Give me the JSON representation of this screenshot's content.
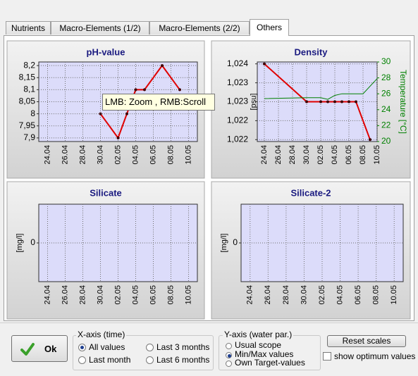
{
  "tabs": [
    "Nutrients",
    "Macro-Elements (1/2)",
    "Macro-Elements (2/2)",
    "Others"
  ],
  "active_tab": 3,
  "chart_data": [
    {
      "type": "line",
      "title": "pH-value",
      "xticks": [
        "24.04",
        "26.04",
        "28.04",
        "30.04",
        "02.05",
        "04.05",
        "06.05",
        "08.05",
        "10.05"
      ],
      "xlim": [
        "23.04",
        "11.05"
      ],
      "ylim": [
        7.885,
        8.215
      ],
      "yticks": [
        {
          "value": 8.2,
          "label": "8,2"
        },
        {
          "value": 8.15,
          "label": "8,15"
        },
        {
          "value": 8.1,
          "label": "8,1"
        },
        {
          "value": 8.05,
          "label": "8,05"
        },
        8,
        {
          "value": 7.95,
          "label": "7,95"
        },
        {
          "value": 7.9,
          "label": "7,9"
        }
      ],
      "grid": true,
      "series": [
        {
          "color": "#e00000",
          "markers": true,
          "x": [
            "30.04",
            "02.05",
            "03.05",
            "04.05",
            "05.05",
            "07.05",
            "09.05"
          ],
          "values": [
            8.0,
            7.9,
            8.0,
            8.1,
            8.1,
            8.2,
            8.1
          ]
        }
      ]
    },
    {
      "type": "line",
      "title": "Density",
      "ylabel": "[psu]",
      "y2label": "Temperature [°C]",
      "xticks": [
        "24.04",
        "26.04",
        "28.04",
        "30.04",
        "02.05",
        "04.05",
        "06.05",
        "08.05",
        "10.05"
      ],
      "xlim": [
        "23.04",
        "10.05"
      ],
      "ylim": [
        1.02195,
        1.02405
      ],
      "yticks": [
        {
          "value": 1.024,
          "label": "1,024"
        },
        {
          "value": 1.0235,
          "label": "1,023"
        },
        {
          "value": 1.023,
          "label": "1,023"
        },
        {
          "value": 1.0225,
          "label": "1,022"
        },
        {
          "value": 1.022,
          "label": "1,022"
        }
      ],
      "y2lim": [
        20,
        30
      ],
      "y2ticks": [
        30,
        28,
        26,
        24,
        22,
        20
      ],
      "y2color": "#008000",
      "grid": true,
      "series": [
        {
          "color": "#e00000",
          "markers": true,
          "x": [
            "24.04",
            "30.04",
            "02.05",
            "03.05",
            "04.05",
            "05.05",
            "06.05",
            "07.05",
            "09.05"
          ],
          "values": [
            1.024,
            1.023,
            1.023,
            1.023,
            1.023,
            1.023,
            1.023,
            1.023,
            1.022
          ]
        },
        {
          "color": "#008000",
          "markers": false,
          "axis": "y2",
          "x": [
            "24.04",
            "30.04",
            "02.05",
            "03.05",
            "04.05",
            "05.05",
            "08.05",
            "10.05"
          ],
          "values": [
            25.4,
            25.5,
            25.5,
            25.3,
            25.8,
            26.0,
            26.0,
            27.9
          ]
        }
      ]
    },
    {
      "type": "line",
      "title": "Silicate",
      "ylabel": "[mg/l]",
      "xticks": [
        "24.04",
        "26.04",
        "28.04",
        "30.04",
        "02.05",
        "04.05",
        "06.05",
        "08.05",
        "10.05"
      ],
      "xlim": [
        "23.04",
        "11.05"
      ],
      "ylim": [
        -1,
        1
      ],
      "yticks": [
        0
      ],
      "grid": true,
      "series": []
    },
    {
      "type": "line",
      "title": "Silicate-2",
      "ylabel": "[mg/l]",
      "xticks": [
        "24.04",
        "26.04",
        "28.04",
        "30.04",
        "02.05",
        "04.05",
        "06.05",
        "08.05",
        "10.05"
      ],
      "xlim": [
        "23.04",
        "11.05"
      ],
      "ylim": [
        -1,
        1
      ],
      "yticks": [
        0
      ],
      "grid": true,
      "series": []
    }
  ],
  "tooltip": "LMB: Zoom , RMB:Scroll",
  "ok_button": "Ok",
  "x_axis_group": {
    "title": "X-axis (time)",
    "options": [
      "All values",
      "Last 3 months",
      "Last month",
      "Last 6 months"
    ],
    "selected": 0
  },
  "y_axis_group": {
    "title": "Y-axis (water par.)",
    "options": [
      "Usual scope",
      "Min/Max values",
      "Own Target-values"
    ],
    "selected": 1
  },
  "reset_button": "Reset scales",
  "optimum_checkbox": "show optimum values"
}
